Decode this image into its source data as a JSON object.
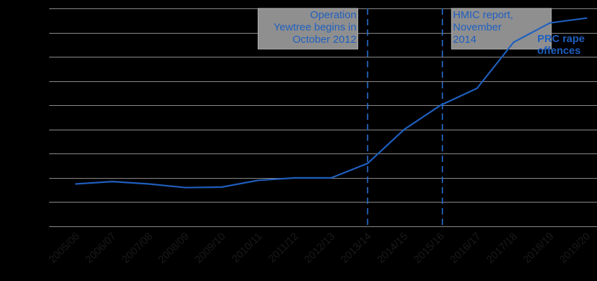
{
  "colors": {
    "background": "#000000",
    "series": "#1f5fbf",
    "event_line": "#2a6fd6",
    "annotation_text": "#1f5fbf",
    "annotation_box": "#8f8f8f",
    "grid": "#8c8c8c",
    "tick_label": "#1a1a1a"
  },
  "chart_data": {
    "type": "line",
    "title": "",
    "xlabel": "",
    "ylabel": "",
    "categories": [
      "2005/06",
      "2006/07",
      "2007/08",
      "2008/09",
      "2009/10",
      "2010/11",
      "2011/12",
      "2012/13",
      "2013/14",
      "2014/15",
      "2015/16",
      "2016/17",
      "2017/18",
      "2018/19",
      "2019/20"
    ],
    "ylim": [
      0,
      9
    ],
    "grid": true,
    "series": [
      {
        "name": "PRC rape offences",
        "label_lines": [
          "PRC rape",
          "offences"
        ],
        "values": [
          1.75,
          1.85,
          1.75,
          1.6,
          1.62,
          1.9,
          2.0,
          2.0,
          2.6,
          4.0,
          5.0,
          5.7,
          7.6,
          8.4,
          8.6
        ]
      }
    ],
    "events": [
      {
        "position": 8.0,
        "lines": [
          "Operation",
          "Yewtree begins in",
          "October 2012"
        ],
        "align": "right"
      },
      {
        "position": 10.05,
        "lines": [
          "HMIC report,",
          "November",
          "2014"
        ],
        "align": "left"
      }
    ]
  }
}
